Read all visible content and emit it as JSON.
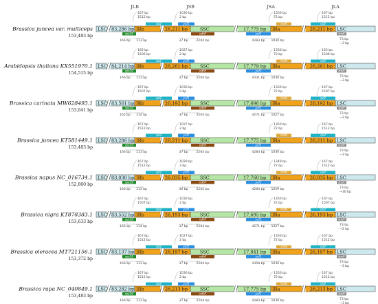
{
  "junctions": [
    "JLB",
    "JSB",
    "JSA",
    "JLA"
  ],
  "colors": {
    "lsc": "#cde9ee",
    "ir": "#f1a21b",
    "ssc": "#b6e6a5",
    "rps19": "#1f8a2a",
    "rpl2": "#1fb3c5",
    "ycf1": "#2b8fe0",
    "ndhF": "#8a4a12",
    "trnH": "#8d8d8d",
    "trnN": "#e0a93a",
    "border": "#333333"
  },
  "labels": {
    "lsc": "LSC",
    "ira": "IRa",
    "irb": "IRb",
    "ssc": "SSC",
    "rps19": "rps19",
    "rpl2": "rpl2",
    "ycf1": "ycf1",
    "ndhF": "ndhF",
    "trnH": "trnH",
    "trnN": "trnN"
  },
  "species": [
    {
      "name": "Brassica juncea var. multiceps",
      "length": "153,483 bp",
      "lsc": "83,286 bp",
      "irb": "26,211 bp",
      "ssc": "17,775 bp",
      "ira": "26,211 bp",
      "jlb_top": [
        "167 bp",
        "1512 bp"
      ],
      "jlb_bot": [
        "166 bp",
        "113 bp"
      ],
      "jsb_top": [
        "1030 bp",
        "2 bp"
      ],
      "jsb_bot": [
        "37 bp",
        "2204 bp"
      ],
      "jsa_top": [
        "1350 bp",
        "72 bp"
      ],
      "jsa_bot": [
        "4283 bp",
        "1030 bp"
      ],
      "jla_top": [
        "167 bp",
        "1512 bp"
      ],
      "jla_bot": [
        "73 bp",
        "3 bp"
      ]
    },
    {
      "name": "Arabidopsis thaliana KX551970.1",
      "length": "154,515 bp",
      "lsc": "84,214 bp",
      "irb": "26,261 bp",
      "ssc": "17,779 bp",
      "ira": "26,261 bp",
      "jlb_top": [
        "165 bp",
        "1506 bp"
      ],
      "jlb_bot": [
        "166 bp",
        "113 bp"
      ],
      "jsb_top": [
        "1027 bp",
        "2 bp"
      ],
      "jsb_bot": [
        "37 bp",
        "2204 bp"
      ],
      "jsa_top": [
        "1350 bp",
        "72 bp"
      ],
      "jsa_bot": [
        "4331 bp",
        "1030 bp"
      ],
      "jla_top": [
        "165 bp",
        "1506 bp"
      ],
      "jla_bot": [
        "73 bp",
        "3 bp"
      ]
    },
    {
      "name": "Brassica carinata MW628493.1",
      "length": "153,641 bp",
      "lsc": "83,561 bp",
      "irb": "26,192 bp",
      "ssc": "17,696 bp",
      "ira": "26,192 bp",
      "jlb_top": [
        "167 bp",
        "1507 bp"
      ],
      "jlb_bot": [
        "165 bp",
        "114 bp"
      ],
      "jsb_top": [
        "1030 bp",
        "2 bp"
      ],
      "jsb_bot": [
        "37 bp",
        "2204 bp"
      ],
      "jsa_top": [
        "1350 bp",
        "72 bp"
      ],
      "jsa_bot": [
        "4271 bp",
        "1027 bp"
      ],
      "jla_top": [
        "167 bp",
        "1507 bp"
      ],
      "jla_bot": [
        "73 bp",
        "2 bp"
      ]
    },
    {
      "name": "Brassica juncea KT581449.1",
      "length": "153,483 bp",
      "lsc": "83,286 bp",
      "irb": "26,211 bp",
      "ssc": "17,775 bp",
      "ira": "26,211 bp",
      "jlb_top": [
        "167 bp",
        "1512 bp"
      ],
      "jlb_bot": [
        "166 bp",
        "113 bp"
      ],
      "jsb_top": [
        "1027 bp",
        "2 bp"
      ],
      "jsb_bot": [
        "37 bp",
        "2204 bp"
      ],
      "jsa_top": [
        "1350 bp",
        "72 bp"
      ],
      "jsa_bot": [
        "4283 bp",
        "1030 bp"
      ],
      "jla_top": [
        "167 bp",
        "1512 bp"
      ],
      "jla_bot": [
        "73 bp",
        "3 bp"
      ]
    },
    {
      "name": "Brassica napus NC_016734.1",
      "length": "152,860 bp",
      "lsc": "83,030 bp",
      "irb": "26,035 bp",
      "ssc": "17,760 bp",
      "ira": "26,035 bp",
      "jlb_top": [
        "167 bp",
        "1512 bp"
      ],
      "jlb_bot": [
        "166 bp",
        "113 bp"
      ],
      "jsb_top": [
        "1029 bp",
        "3 bp"
      ],
      "jsb_bot": [
        "36 bp",
        "2205 bp"
      ],
      "jsa_top": [
        "1349 bp",
        "72 bp"
      ],
      "jsa_bot": [
        "4284 bp",
        "1029 bp"
      ],
      "jla_top": [
        "167 bp",
        "1512 bp"
      ],
      "jla_bot": [
        "73 bp",
        "30 bp"
      ]
    },
    {
      "name": "Brassica nigra KT878383.1",
      "length": "153,633 bp",
      "lsc": "83,552 bp",
      "irb": "26,193 bp",
      "ssc": "17,695 bp",
      "ira": "26,193 bp",
      "jlb_top": [
        "167 bp",
        "1507 bp"
      ],
      "jlb_bot": [
        "165 bp",
        "114 bp"
      ],
      "jsb_top": [
        "1030 bp",
        "2 bp"
      ],
      "jsb_bot": [
        "37 bp",
        "2204 bp"
      ],
      "jsa_top": [
        "1350 bp",
        "72 bp"
      ],
      "jsa_bot": [
        "4271 bp",
        "1027 bp"
      ],
      "jla_top": [
        "167 bp",
        "1507 bp"
      ],
      "jla_bot": [
        "73 bp",
        "2 bp"
      ]
    },
    {
      "name": "Brassica oleracea MT721156.1",
      "length": "153,372 bp",
      "lsc": "83,137 bp",
      "irb": "26,197 bp",
      "ssc": "17,841 bp",
      "ira": "26,197 bp",
      "jlb_top": [
        "167 bp",
        "1512 bp"
      ],
      "jlb_bot": [
        "166 bp",
        "113 bp"
      ],
      "jsb_top": [
        "1027 bp",
        "2 bp"
      ],
      "jsb_bot": [
        "37 bp",
        "2204 bp"
      ],
      "jsa_top": [
        "1350 bp",
        "72 bp"
      ],
      "jsa_bot": [
        "4358 bp",
        "1030 bp"
      ],
      "jla_top": [
        "167 bp",
        "1512 bp"
      ],
      "jla_bot": [
        "73 bp",
        "3 bp"
      ]
    },
    {
      "name": "Brassica rapa NC_040849.1",
      "length": "153,483 bp",
      "lsc": "83,282 bp",
      "irb": "26,213 bp",
      "ssc": "17,775 bp",
      "ira": "26,213 bp",
      "jlb_top": [
        "167 bp",
        "1512 bp"
      ],
      "jlb_bot": [
        "166 bp",
        "113 bp"
      ],
      "jsb_top": [
        "1030 bp",
        "2 bp"
      ],
      "jsb_bot": [
        "37 bp",
        "2204 bp"
      ],
      "jsa_top": [
        "1350 bp",
        "72 bp"
      ],
      "jsa_bot": [
        "4283 bp",
        "1030 bp"
      ],
      "jla_top": [
        "167 bp",
        "1512 bp"
      ],
      "jla_bot": [
        "73 bp",
        "3 bp"
      ]
    }
  ]
}
